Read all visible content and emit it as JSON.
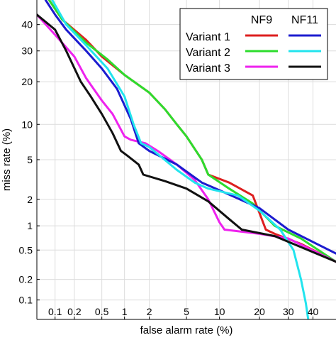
{
  "chart_data": {
    "type": "line",
    "chart_kind": "DET curve",
    "title": "",
    "xlabel": "false alarm rate (%)",
    "ylabel": "miss rate (%)",
    "x_scale": "probit",
    "y_scale": "probit",
    "xlim": [
      0.05,
      50
    ],
    "ylim": [
      0.05,
      50
    ],
    "grid": true,
    "x_ticks": [
      0.1,
      0.2,
      0.5,
      1,
      2,
      5,
      10,
      20,
      30,
      40
    ],
    "x_tick_labels": [
      "0.1",
      "0.2",
      "0.5",
      "1",
      "2",
      "5",
      "10",
      "20",
      "30",
      "40"
    ],
    "y_ticks": [
      0.1,
      0.2,
      0.5,
      1,
      2,
      5,
      10,
      20,
      30,
      40
    ],
    "y_tick_labels": [
      "0.1",
      "0.2",
      "0.5",
      "1",
      "2",
      "5",
      "10",
      "20",
      "30",
      "40"
    ],
    "legend": {
      "position": "top-right",
      "column_headers": [
        "NF9",
        "NF11"
      ],
      "row_labels": [
        "Variant 1",
        "Variant 2",
        "Variant 3"
      ]
    },
    "series": [
      {
        "name": "Variant 1 NF9",
        "color": "#dd1f1f",
        "points": [
          [
            0.08,
            50
          ],
          [
            0.13,
            42
          ],
          [
            0.3,
            34
          ],
          [
            0.5,
            28
          ],
          [
            1,
            22
          ],
          [
            2,
            17
          ],
          [
            3,
            13
          ],
          [
            4,
            10
          ],
          [
            5,
            8
          ],
          [
            7,
            5
          ],
          [
            8,
            3.6
          ],
          [
            12,
            3
          ],
          [
            18,
            2.2
          ],
          [
            22,
            0.9
          ],
          [
            25,
            0.8
          ],
          [
            35,
            0.6
          ],
          [
            50,
            0.35
          ]
        ]
      },
      {
        "name": "Variant 2 NF9",
        "color": "#2ddc2d",
        "points": [
          [
            0.08,
            50
          ],
          [
            0.13,
            42
          ],
          [
            0.3,
            33
          ],
          [
            0.6,
            27
          ],
          [
            1,
            22
          ],
          [
            2,
            17
          ],
          [
            3,
            13
          ],
          [
            4,
            10
          ],
          [
            5,
            8
          ],
          [
            7,
            5
          ],
          [
            8,
            3.6
          ],
          [
            12,
            2.6
          ],
          [
            18,
            1.8
          ],
          [
            25,
            1.0
          ],
          [
            35,
            0.7
          ],
          [
            50,
            0.35
          ]
        ]
      },
      {
        "name": "Variant 3 NF9",
        "color": "#ee22ee",
        "points": [
          [
            0.05,
            44
          ],
          [
            0.1,
            36
          ],
          [
            0.2,
            28
          ],
          [
            0.3,
            21
          ],
          [
            0.5,
            15
          ],
          [
            0.7,
            12
          ],
          [
            1,
            8
          ],
          [
            1.2,
            7.5
          ],
          [
            1.8,
            7
          ],
          [
            2.5,
            6
          ],
          [
            4,
            4.5
          ],
          [
            6,
            3.2
          ],
          [
            8,
            2.0
          ],
          [
            10,
            1.1
          ],
          [
            11,
            0.9
          ],
          [
            20,
            0.8
          ],
          [
            30,
            0.7
          ],
          [
            50,
            0.35
          ]
        ]
      },
      {
        "name": "Variant 1 NF11",
        "color": "#1c1ccf",
        "points": [
          [
            0.07,
            50
          ],
          [
            0.1,
            44
          ],
          [
            0.15,
            38
          ],
          [
            0.3,
            30
          ],
          [
            0.5,
            24
          ],
          [
            0.8,
            18
          ],
          [
            1.2,
            11
          ],
          [
            1.5,
            7
          ],
          [
            2,
            6
          ],
          [
            4,
            4.5
          ],
          [
            7,
            3
          ],
          [
            10,
            2.5
          ],
          [
            20,
            1.6
          ],
          [
            30,
            0.9
          ],
          [
            50,
            0.45
          ]
        ]
      },
      {
        "name": "Variant 2 NF11",
        "color": "#22e4ee",
        "points": [
          [
            0.09,
            50
          ],
          [
            0.15,
            40
          ],
          [
            0.3,
            32
          ],
          [
            0.6,
            24
          ],
          [
            1,
            16
          ],
          [
            1.3,
            10
          ],
          [
            1.6,
            7
          ],
          [
            2,
            6.5
          ],
          [
            4,
            4
          ],
          [
            6,
            3
          ],
          [
            8,
            2.6
          ],
          [
            14,
            2.2
          ],
          [
            20,
            1.5
          ],
          [
            27,
            0.9
          ],
          [
            32,
            0.5
          ],
          [
            35,
            0.2
          ],
          [
            37,
            0.09
          ],
          [
            38,
            0.05
          ]
        ]
      },
      {
        "name": "Variant 3 NF11",
        "color": "#111111",
        "points": [
          [
            0.05,
            44
          ],
          [
            0.1,
            38
          ],
          [
            0.15,
            30
          ],
          [
            0.25,
            20
          ],
          [
            0.35,
            16
          ],
          [
            0.5,
            12
          ],
          [
            0.7,
            8.5
          ],
          [
            0.9,
            6
          ],
          [
            1.1,
            5.4
          ],
          [
            1.5,
            4.5
          ],
          [
            1.7,
            3.6
          ],
          [
            3,
            3.1
          ],
          [
            5,
            2.6
          ],
          [
            8,
            1.9
          ],
          [
            12,
            1.2
          ],
          [
            15,
            0.9
          ],
          [
            25,
            0.75
          ],
          [
            50,
            0.35
          ]
        ]
      }
    ]
  }
}
